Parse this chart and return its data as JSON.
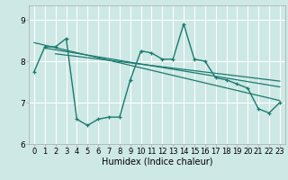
{
  "xlabel": "Humidex (Indice chaleur)",
  "background_color": "#cde8e5",
  "grid_color": "#ffffff",
  "line_color": "#1a7a6e",
  "xlim": [
    -0.5,
    23.5
  ],
  "ylim": [
    6.0,
    9.35
  ],
  "yticks": [
    6,
    7,
    8,
    9
  ],
  "xticks": [
    0,
    1,
    2,
    3,
    4,
    5,
    6,
    7,
    8,
    9,
    10,
    11,
    12,
    13,
    14,
    15,
    16,
    17,
    18,
    19,
    20,
    21,
    22,
    23
  ],
  "main_line": {
    "x": [
      0,
      1,
      2,
      3,
      4,
      5,
      6,
      7,
      8,
      9,
      10,
      11,
      12,
      13,
      14,
      15,
      16,
      17,
      18,
      19,
      20,
      21,
      22,
      23
    ],
    "y": [
      7.75,
      8.35,
      8.35,
      8.55,
      6.6,
      6.45,
      6.6,
      6.65,
      6.65,
      7.55,
      8.25,
      8.2,
      8.05,
      8.05,
      8.9,
      8.05,
      8.0,
      7.6,
      7.55,
      7.45,
      7.35,
      6.85,
      6.75,
      7.0
    ]
  },
  "trend_line1": {
    "x": [
      0,
      23
    ],
    "y": [
      8.45,
      7.05
    ]
  },
  "trend_line2": {
    "x": [
      1,
      23
    ],
    "y": [
      8.32,
      7.38
    ]
  },
  "trend_line3": {
    "x": [
      2,
      23
    ],
    "y": [
      8.18,
      7.52
    ]
  },
  "xlabel_fontsize": 7,
  "tick_fontsize": 6,
  "spine_color": "#aaaaaa"
}
